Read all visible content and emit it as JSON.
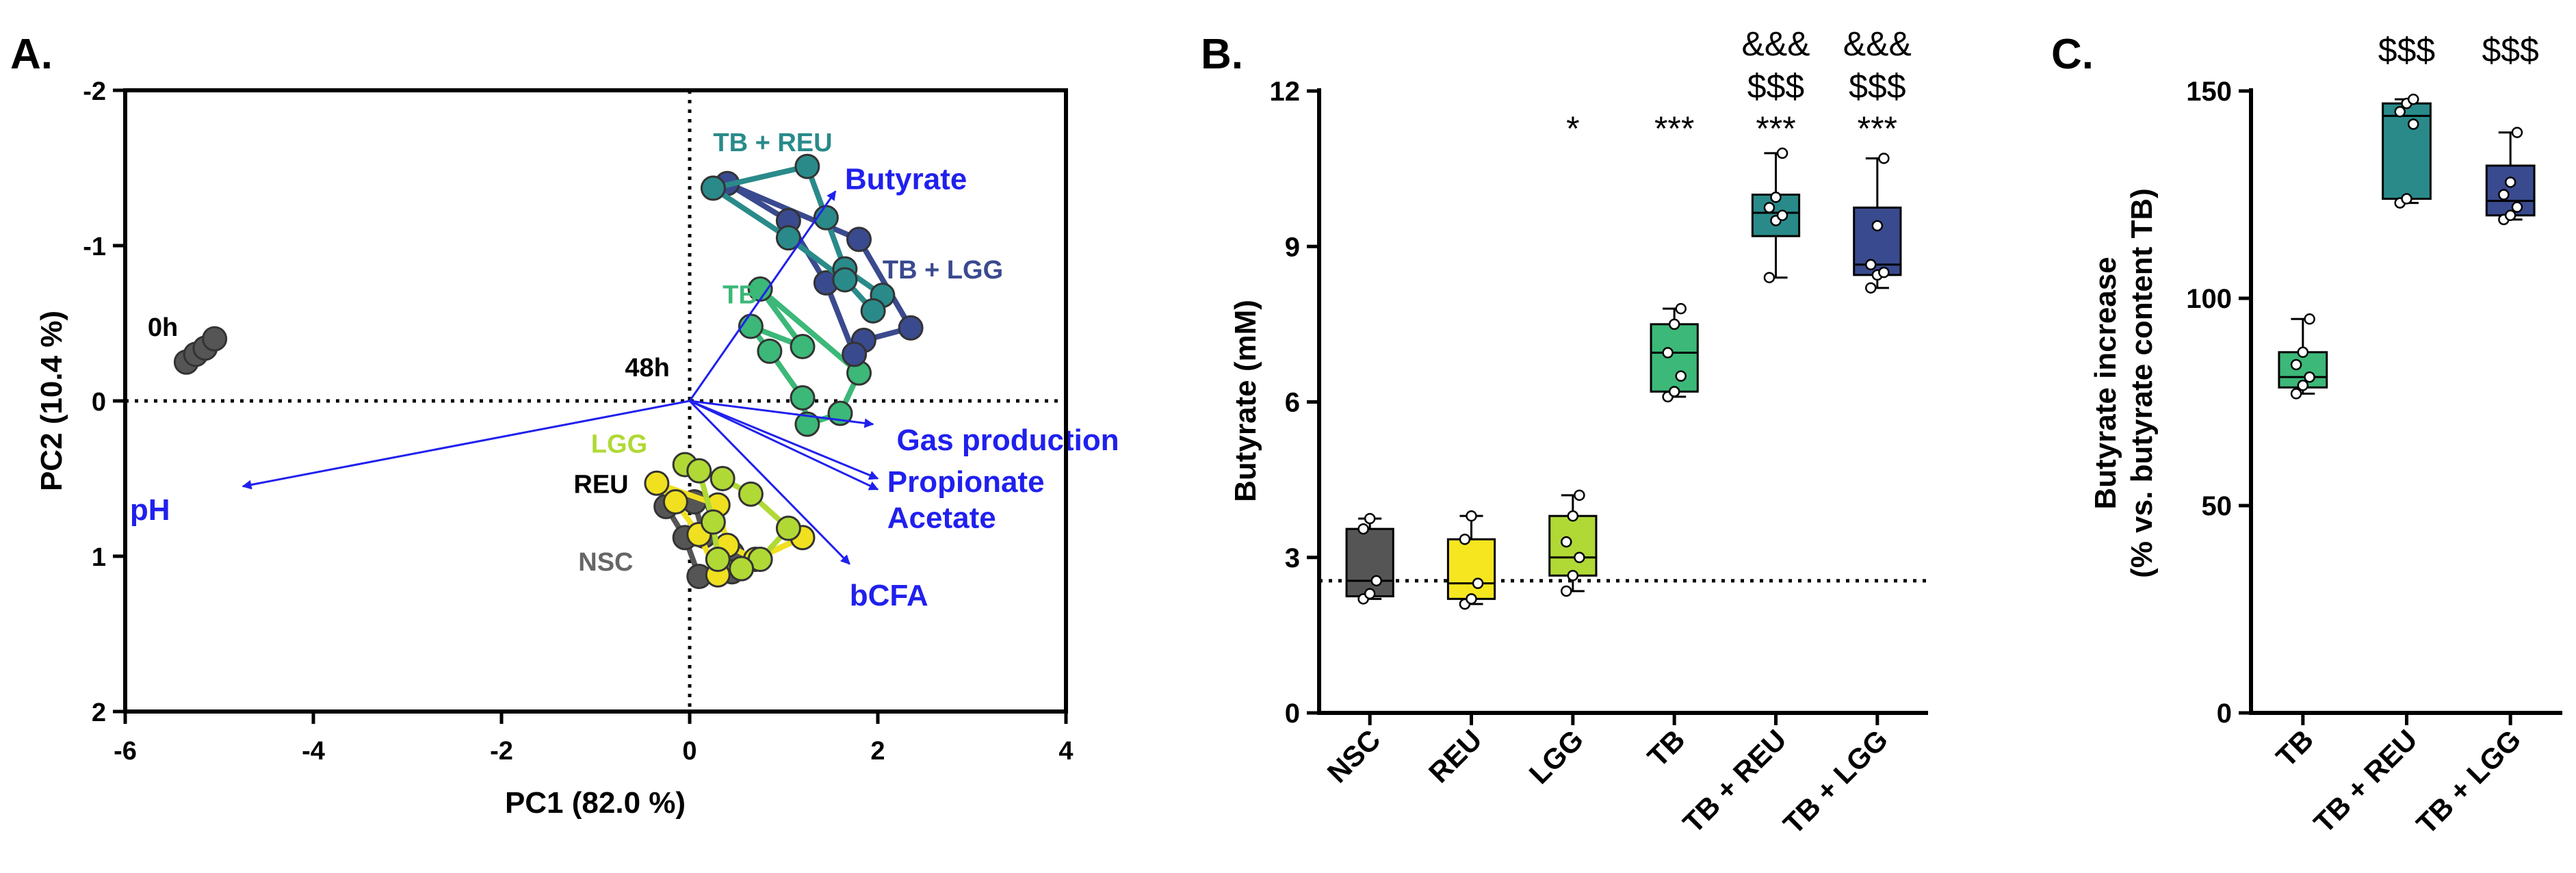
{
  "chart_data": [
    {
      "panel": "A.",
      "type": "scatter",
      "title": "",
      "xlabel": "PC1 (82.0 %)",
      "ylabel": "PC2 (10.4 %)",
      "xlim": [
        -6,
        4
      ],
      "ylim": [
        2,
        -2
      ],
      "y_inverted": true,
      "xticks": [
        "-6",
        "-4",
        "-2",
        "0",
        "2",
        "4"
      ],
      "yticks": [
        "-2",
        "-1",
        "0",
        "1",
        "2"
      ],
      "time_labels": [
        {
          "text": "0h",
          "x": -5.6,
          "y": -0.48
        },
        {
          "text": "48h",
          "x": -0.45,
          "y": -0.22
        }
      ],
      "groups": [
        {
          "name": "0h",
          "label": "",
          "color": "#555555",
          "points": [
            [
              -5.35,
              -0.25
            ],
            [
              -5.25,
              -0.3
            ],
            [
              -5.15,
              -0.34
            ],
            [
              -5.05,
              -0.4
            ]
          ]
        },
        {
          "name": "NSC",
          "label": "NSC",
          "color": "#555555",
          "label_pos": [
            -0.6,
            1.03
          ],
          "points": [
            [
              -0.25,
              0.68
            ],
            [
              0.05,
              0.65
            ],
            [
              0.15,
              0.87
            ],
            [
              0.45,
              0.98
            ],
            [
              0.45,
              1.1
            ],
            [
              0.1,
              1.13
            ],
            [
              -0.05,
              0.88
            ]
          ]
        },
        {
          "name": "REU",
          "label": "REU",
          "color": "#f0e020",
          "label_pos": [
            -0.65,
            0.53
          ],
          "points": [
            [
              -0.35,
              0.53
            ],
            [
              0.3,
              0.67
            ],
            [
              0.4,
              0.93
            ],
            [
              0.7,
              1.02
            ],
            [
              1.2,
              0.88
            ],
            [
              0.3,
              1.12
            ],
            [
              0.1,
              0.86
            ],
            [
              -0.15,
              0.65
            ]
          ]
        },
        {
          "name": "LGG",
          "label": "LGG",
          "color": "#b0d936",
          "label_pos": [
            -0.45,
            0.27
          ],
          "points": [
            [
              -0.05,
              0.41
            ],
            [
              0.35,
              0.5
            ],
            [
              0.65,
              0.6
            ],
            [
              1.05,
              0.82
            ],
            [
              0.75,
              1.02
            ],
            [
              0.55,
              1.08
            ],
            [
              0.3,
              1.02
            ],
            [
              0.25,
              0.78
            ],
            [
              0.1,
              0.45
            ]
          ]
        },
        {
          "name": "TB",
          "label": "TB",
          "color": "#3cb878",
          "label_pos": [
            0.35,
            -0.69
          ],
          "points": [
            [
              0.75,
              -0.72
            ],
            [
              1.8,
              -0.18
            ],
            [
              1.6,
              0.08
            ],
            [
              1.25,
              0.15
            ],
            [
              1.2,
              -0.02
            ],
            [
              0.85,
              -0.32
            ],
            [
              0.65,
              -0.48
            ],
            [
              1.2,
              -0.35
            ]
          ]
        },
        {
          "name": "TB + LGG",
          "label": "TB + LGG",
          "color": "#3a4a8e",
          "label_pos": [
            2.05,
            -0.85
          ],
          "points": [
            [
              0.4,
              -1.4
            ],
            [
              1.8,
              -1.04
            ],
            [
              2.35,
              -0.47
            ],
            [
              1.85,
              -0.39
            ],
            [
              1.75,
              -0.3
            ],
            [
              1.45,
              -0.76
            ],
            [
              1.05,
              -1.16
            ]
          ]
        },
        {
          "name": "TB + REU",
          "label": "TB + REU",
          "color": "#2a8a8a",
          "label_pos": [
            0.25,
            -1.67
          ],
          "points": [
            [
              0.25,
              -1.37
            ],
            [
              1.25,
              -1.51
            ],
            [
              1.45,
              -1.18
            ],
            [
              1.65,
              -0.85
            ],
            [
              2.05,
              -0.68
            ],
            [
              1.95,
              -0.58
            ],
            [
              1.65,
              -0.78
            ],
            [
              1.05,
              -1.05
            ]
          ]
        }
      ],
      "loadings": [
        {
          "label": "Butyrate",
          "x": 1.55,
          "y": -1.35,
          "label_pos": [
            1.65,
            -1.43
          ]
        },
        {
          "label": "Gas production",
          "x": 1.95,
          "y": 0.15,
          "label_pos": [
            2.2,
            0.25
          ]
        },
        {
          "label": "Propionate",
          "x": 2.0,
          "y": 0.5,
          "label_pos": [
            2.1,
            0.52
          ]
        },
        {
          "label": "Acetate",
          "x": 2.0,
          "y": 0.57,
          "label_pos": [
            2.1,
            0.75
          ]
        },
        {
          "label": "bCFA",
          "x": 1.7,
          "y": 1.05,
          "label_pos": [
            1.7,
            1.25
          ]
        },
        {
          "label": "pH",
          "x": -4.75,
          "y": 0.55,
          "label_pos": [
            -5.95,
            0.7
          ]
        }
      ],
      "arrow_color": "#2020ee"
    },
    {
      "panel": "B.",
      "type": "box",
      "ylabel": "Butyrate (mM)",
      "xlabel": "",
      "ylim": [
        0,
        12
      ],
      "yticks": [
        "0",
        "3",
        "6",
        "9",
        "12"
      ],
      "reference_line": 2.55,
      "categories": [
        "NSC",
        "REU",
        "LGG",
        "TB",
        "TB + REU",
        "TB + LGG"
      ],
      "colors": [
        "#555555",
        "#f5e620",
        "#b0d936",
        "#3cb878",
        "#2a8a8a",
        "#3a4a8e"
      ],
      "boxes": [
        {
          "min": 2.2,
          "q1": 2.25,
          "median": 2.55,
          "q3": 3.55,
          "max": 3.75
        },
        {
          "min": 2.1,
          "q1": 2.2,
          "median": 2.5,
          "q3": 3.35,
          "max": 3.8
        },
        {
          "min": 2.35,
          "q1": 2.65,
          "median": 3.0,
          "q3": 3.8,
          "max": 4.2
        },
        {
          "min": 6.1,
          "q1": 6.2,
          "median": 6.95,
          "q3": 7.5,
          "max": 7.8
        },
        {
          "min": 8.4,
          "q1": 9.2,
          "median": 9.65,
          "q3": 10.0,
          "max": 10.8
        },
        {
          "min": 8.2,
          "q1": 8.45,
          "median": 8.65,
          "q3": 9.75,
          "max": 10.7
        }
      ],
      "points": [
        [
          2.2,
          2.3,
          2.55,
          3.55,
          3.75
        ],
        [
          2.1,
          2.2,
          2.5,
          3.35,
          3.8
        ],
        [
          2.35,
          2.65,
          3.0,
          3.3,
          3.8,
          4.2
        ],
        [
          6.1,
          6.2,
          6.5,
          6.95,
          7.5,
          7.8
        ],
        [
          8.4,
          9.5,
          9.6,
          9.75,
          9.95,
          10.8
        ],
        [
          8.2,
          8.45,
          8.5,
          8.65,
          9.4,
          10.7
        ]
      ],
      "annotations": [
        {
          "category": "LGG",
          "lines": [
            "*"
          ]
        },
        {
          "category": "TB",
          "lines": [
            "***"
          ]
        },
        {
          "category": "TB + REU",
          "lines": [
            "&&&",
            "$$$",
            "***"
          ]
        },
        {
          "category": "TB + LGG",
          "lines": [
            "&&&",
            "$$$",
            "***"
          ]
        }
      ]
    },
    {
      "panel": "C.",
      "type": "box",
      "ylabel": "Butyrate increase",
      "ylabel2": "(% vs. butyrate content TB)",
      "xlabel": "",
      "ylim": [
        0,
        150
      ],
      "yticks": [
        "0",
        "50",
        "100",
        "150"
      ],
      "categories": [
        "TB",
        "TB + REU",
        "TB + LGG"
      ],
      "colors": [
        "#3cb878",
        "#2a8a8a",
        "#3a4a8e"
      ],
      "boxes": [
        {
          "min": 77,
          "q1": 78.5,
          "median": 81,
          "q3": 87,
          "max": 95
        },
        {
          "min": 123,
          "q1": 124,
          "median": 144,
          "q3": 147,
          "max": 148
        },
        {
          "min": 119,
          "q1": 120,
          "median": 123.5,
          "q3": 132,
          "max": 140
        }
      ],
      "points": [
        [
          77,
          79,
          81,
          84,
          87,
          95
        ],
        [
          123,
          124,
          142,
          145,
          147,
          148
        ],
        [
          119,
          120,
          122,
          125,
          128,
          140
        ]
      ],
      "annotations": [
        {
          "category": "TB + REU",
          "lines": [
            "$$$"
          ]
        },
        {
          "category": "TB + LGG",
          "lines": [
            "$$$"
          ]
        }
      ]
    }
  ]
}
